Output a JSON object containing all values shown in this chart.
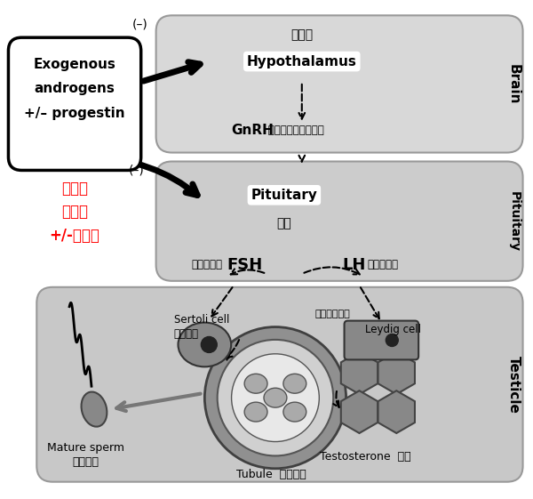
{
  "bg_color": "#ffffff",
  "brain_color": "#d8d8d8",
  "pit_color": "#cccccc",
  "tes_color": "#c8c8c8",
  "side_tab_color": "#bbbbbb",
  "hypothalamus_cn": "下丘脑",
  "hypothalamus_en": "Hypothalamus",
  "gnrh_en": "GnRH",
  "gnrh_cn": " 促性腺激素释放激素",
  "pituitary_en": "Pituitary",
  "pituitary_cn": "垂体",
  "brain_label": "Brain",
  "pituitary_label": "Pituitary",
  "testicle_label": "Testicle",
  "fsh_en": "FSH",
  "fsh_cn": "卵泡刺激素",
  "lh_en": "LH",
  "lh_cn": "黄体生成素",
  "sertoli_en": "Sertoli cell",
  "sertoli_cn": "支持细胞",
  "leydig_cn": "美丸间质细胞",
  "leydig_en": "Leydig cell",
  "tubule_en": "Tubule",
  "tubule_cn": "曲细精管",
  "testosterone_en": "Testosterone",
  "testosterone_cn": "美酮",
  "sperm_en": "Mature sperm",
  "sperm_cn": "成熟精子",
  "exog_en1": "Exogenous",
  "exog_en2": "androgens",
  "exog_en3": "+/– progestin",
  "exog_cn1": "外源性",
  "exog_cn2": "雄激素",
  "exog_cn3": "+/-孕激素",
  "minus": "(–)"
}
